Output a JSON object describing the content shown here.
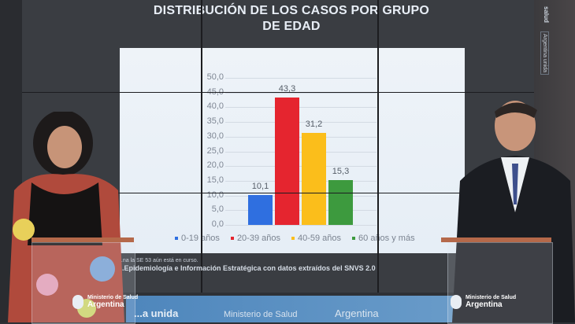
{
  "title_line1": "DISTRIBUCIÓN DE LOS CASOS POR GRUPO",
  "title_line2": "DE EDAD",
  "chart_data": {
    "type": "bar",
    "title": "DISTRIBUCIÓN DE LOS CASOS POR GRUPO DE EDAD",
    "categories": [
      "0-19 años",
      "20-39 años",
      "40-59 años",
      "60 años y más"
    ],
    "values": [
      10.1,
      43.3,
      31.2,
      15.3
    ],
    "value_labels": [
      "10,1",
      "43,3",
      "31,2",
      "15,3"
    ],
    "colors": [
      "#2f6fe0",
      "#e5252f",
      "#fbbe1b",
      "#3d9a3e"
    ],
    "xlabel": "",
    "ylabel": "",
    "ylim": [
      0,
      50
    ],
    "yticks": [
      "0,0",
      "5,0",
      "10,0",
      "15,0",
      "20,0",
      "25,0",
      "30,0",
      "35,0",
      "40,0",
      "45,0",
      "50,0"
    ],
    "grid": true,
    "legend_position": "bottom"
  },
  "legend": [
    "0-19 años",
    "20-39 años",
    "40-59 años",
    "60 años y más"
  ],
  "footnote": {
    "line1": "...na la SE 53 aún está en curso.",
    "line2": "...Epidemiología e Información Estratégica con datos extraídos del SNVS 2.0"
  },
  "backdrop": {
    "band_text1": "...a unida",
    "band_text2": "Ministerio de Salud",
    "band_text3": "Argentina",
    "side_label": "salud",
    "side_label2": "Argentina unida",
    "left_wall_text": "Argentin..."
  },
  "podium_left": {
    "line1": "Ministerio de Salud",
    "line2": "Argentina"
  },
  "podium_right": {
    "line1": "Ministerio de Salud",
    "line2": "Argentina"
  }
}
